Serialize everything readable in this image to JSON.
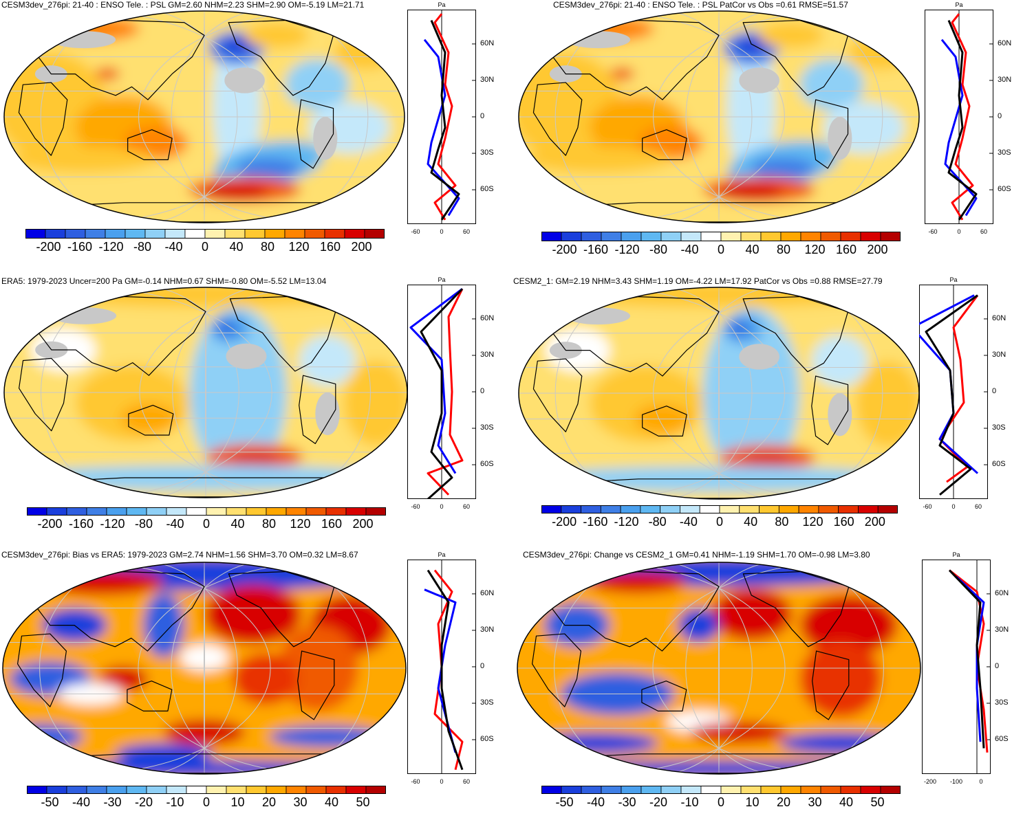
{
  "colors": {
    "land": "#c8c8c8",
    "coast": "#000000",
    "grid": "#c8c8c8",
    "profile_model": "#ff0000",
    "profile_obs": "#0000ff",
    "profile_black": "#000000",
    "palette": [
      "#0000e6",
      "#1a3fdc",
      "#2f5fe0",
      "#3f7fe6",
      "#4aa0ee",
      "#5fb8f2",
      "#8fd0f6",
      "#c4e8fa",
      "#ffffff",
      "#fff2b0",
      "#ffe070",
      "#ffc830",
      "#ffa800",
      "#ff8400",
      "#f05a00",
      "#e83000",
      "#d80000",
      "#b40000"
    ]
  },
  "panels": [
    {
      "id": "p1",
      "title": "CESM3dev_276pi: 21-40 : ENSO Tele. : PSL GM=2.60 NHM=2.23 SHM=2.90 OM=-5.19 LM=21.71",
      "colorbar_labels": [
        "-200",
        "-160",
        "-120",
        "-80",
        "-40",
        "0",
        "40",
        "80",
        "120",
        "160",
        "200"
      ],
      "profile_unit": "Pa",
      "profile_lat_labels": [
        "60N",
        "30N",
        "0",
        "30S",
        "60S"
      ],
      "profile_x_labels": [
        "-60",
        "0",
        "60"
      ]
    },
    {
      "id": "p2",
      "title": "CESM3dev_276pi: 21-40 : ENSO Tele. : PSL PatCor vs Obs =0.61 RMSE=51.57",
      "colorbar_labels": [
        "-200",
        "-160",
        "-120",
        "-80",
        "-40",
        "0",
        "40",
        "80",
        "120",
        "160",
        "200"
      ],
      "profile_unit": "Pa",
      "profile_lat_labels": [
        "60N",
        "30N",
        "0",
        "30S",
        "60S"
      ],
      "profile_x_labels": [
        "-60",
        "0",
        "60"
      ]
    },
    {
      "id": "p3",
      "title": "ERA5: 1979-2023 Uncer=200 Pa GM=-0.14 NHM=0.67 SHM=-0.80 OM=-5.52 LM=13.04",
      "colorbar_labels": [
        "-200",
        "-160",
        "-120",
        "-80",
        "-40",
        "0",
        "40",
        "80",
        "120",
        "160",
        "200"
      ],
      "profile_unit": "Pa",
      "profile_lat_labels": [
        "60N",
        "30N",
        "0",
        "30S",
        "60S"
      ],
      "profile_x_labels": [
        "-60",
        "0",
        "60"
      ]
    },
    {
      "id": "p4",
      "title": "CESM2_1: GM=2.19 NHM=3.43 SHM=1.19 OM=-4.22 LM=17.92 PatCor vs Obs =0.88 RMSE=27.79",
      "colorbar_labels": [
        "-200",
        "-160",
        "-120",
        "-80",
        "-40",
        "0",
        "40",
        "80",
        "120",
        "160",
        "200"
      ],
      "profile_unit": "Pa",
      "profile_lat_labels": [
        "60N",
        "30N",
        "0",
        "30S",
        "60S"
      ],
      "profile_x_labels": [
        "-60",
        "0",
        "60"
      ]
    },
    {
      "id": "p5",
      "title": "CESM3dev_276pi: Bias vs ERA5: 1979-2023 GM=2.74 NHM=1.56 SHM=3.70 OM=0.32 LM=8.67",
      "colorbar_labels": [
        "-50",
        "-40",
        "-30",
        "-20",
        "-10",
        "0",
        "10",
        "20",
        "30",
        "40",
        "50"
      ],
      "profile_unit": "Pa",
      "profile_lat_labels": [
        "60N",
        "30N",
        "0",
        "30S",
        "60S"
      ],
      "profile_x_labels": [
        "-60",
        "0",
        "60"
      ]
    },
    {
      "id": "p6",
      "title": "CESM3dev_276pi: Change vs CESM2_1 GM=0.41 NHM=-1.19 SHM=1.70 OM=-0.98 LM=3.80",
      "colorbar_labels": [
        "-50",
        "-40",
        "-30",
        "-20",
        "-10",
        "0",
        "10",
        "20",
        "30",
        "40",
        "50"
      ],
      "profile_unit": "Pa",
      "profile_lat_labels": [
        "60N",
        "30N",
        "0",
        "30S",
        "60S"
      ],
      "profile_x_labels": [
        "-200",
        "-100",
        "0"
      ]
    }
  ]
}
